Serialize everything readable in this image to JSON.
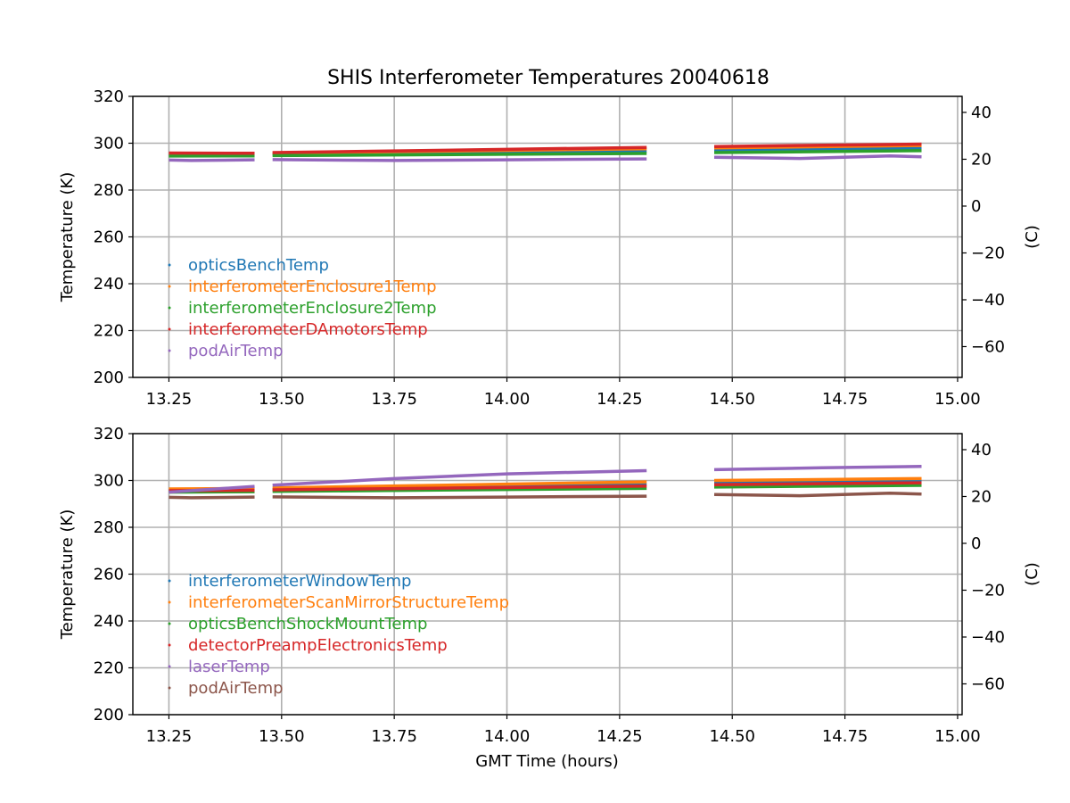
{
  "title": "SHIS Interferometer Temperatures 20040618",
  "chart_data": [
    {
      "type": "line",
      "ylabel": "Temperature (K)",
      "ylabel_right": "(C)",
      "xlabel": "",
      "xlim": [
        13.17,
        15.01
      ],
      "ylim": [
        200,
        320
      ],
      "ylim_right_celsius": [
        -73.15,
        46.85
      ],
      "xticks": [
        "13.25",
        "13.50",
        "13.75",
        "14.00",
        "14.25",
        "14.50",
        "14.75",
        "15.00"
      ],
      "yticks": [
        "200",
        "220",
        "240",
        "260",
        "280",
        "300",
        "320"
      ],
      "yticks_right": [
        "−60",
        "−40",
        "−20",
        "0",
        "20",
        "40"
      ],
      "grid": true,
      "legend_position": "lower-left",
      "series": [
        {
          "name": "opticsBenchTemp",
          "color": "#1f77b4",
          "segments": [
            {
              "x": [
                13.25,
                13.44
              ],
              "y": [
                295.0,
                295.2
              ]
            },
            {
              "x": [
                13.48,
                14.31
              ],
              "y": [
                295.3,
                296.6
              ]
            },
            {
              "x": [
                14.46,
                14.92
              ],
              "y": [
                297.2,
                297.9
              ]
            }
          ]
        },
        {
          "name": "interferometerEnclosure1Temp",
          "color": "#ff7f0e",
          "segments": [
            {
              "x": [
                13.25,
                13.44
              ],
              "y": [
                295.6,
                295.7
              ]
            },
            {
              "x": [
                13.48,
                14.31
              ],
              "y": [
                295.8,
                297.6
              ]
            },
            {
              "x": [
                14.46,
                14.92
              ],
              "y": [
                298.0,
                299.0
              ]
            }
          ]
        },
        {
          "name": "interferometerEnclosure2Temp",
          "color": "#2ca02c",
          "segments": [
            {
              "x": [
                13.25,
                13.44
              ],
              "y": [
                294.5,
                294.6
              ]
            },
            {
              "x": [
                13.48,
                14.31
              ],
              "y": [
                294.7,
                295.6
              ]
            },
            {
              "x": [
                14.46,
                14.92
              ],
              "y": [
                296.0,
                296.8
              ]
            }
          ]
        },
        {
          "name": "interferometerDAmotorsTemp",
          "color": "#d62728",
          "segments": [
            {
              "x": [
                13.25,
                13.44
              ],
              "y": [
                295.8,
                295.7
              ]
            },
            {
              "x": [
                13.48,
                14.31
              ],
              "y": [
                296.0,
                298.2
              ]
            },
            {
              "x": [
                14.46,
                14.92
              ],
              "y": [
                298.6,
                299.6
              ]
            }
          ]
        },
        {
          "name": "podAirTemp",
          "color": "#9467bd",
          "segments": [
            {
              "x": [
                13.25,
                13.3,
                13.44
              ],
              "y": [
                292.8,
                292.6,
                292.9
              ]
            },
            {
              "x": [
                13.48,
                13.75,
                14.0,
                14.31
              ],
              "y": [
                293.0,
                292.6,
                292.9,
                293.3
              ]
            },
            {
              "x": [
                14.46,
                14.65,
                14.85,
                14.92
              ],
              "y": [
                294.0,
                293.5,
                294.6,
                294.2
              ]
            }
          ]
        }
      ]
    },
    {
      "type": "line",
      "ylabel": "Temperature (K)",
      "ylabel_right": "(C)",
      "xlabel": "GMT Time (hours)",
      "xlim": [
        13.17,
        15.01
      ],
      "ylim": [
        200,
        320
      ],
      "ylim_right_celsius": [
        -73.15,
        46.85
      ],
      "xticks": [
        "13.25",
        "13.50",
        "13.75",
        "14.00",
        "14.25",
        "14.50",
        "14.75",
        "15.00"
      ],
      "yticks": [
        "200",
        "220",
        "240",
        "260",
        "280",
        "300",
        "320"
      ],
      "yticks_right": [
        "−60",
        "−40",
        "−20",
        "0",
        "20",
        "40"
      ],
      "grid": true,
      "legend_position": "lower-left",
      "series": [
        {
          "name": "interferometerWindowTemp",
          "color": "#1f77b4",
          "segments": [
            {
              "x": [
                13.25,
                13.44
              ],
              "y": [
                295.5,
                296.0
              ]
            },
            {
              "x": [
                13.48,
                14.31
              ],
              "y": [
                296.2,
                298.3
              ]
            },
            {
              "x": [
                14.46,
                14.92
              ],
              "y": [
                298.8,
                299.6
              ]
            }
          ]
        },
        {
          "name": "interferometerScanMirrorStructureTemp",
          "color": "#ff7f0e",
          "segments": [
            {
              "x": [
                13.25,
                13.44
              ],
              "y": [
                296.4,
                296.6
              ]
            },
            {
              "x": [
                13.48,
                14.31
              ],
              "y": [
                296.8,
                299.4
              ]
            },
            {
              "x": [
                14.46,
                14.92
              ],
              "y": [
                300.0,
                300.8
              ]
            }
          ]
        },
        {
          "name": "opticsBenchShockMountTemp",
          "color": "#2ca02c",
          "segments": [
            {
              "x": [
                13.25,
                13.44
              ],
              "y": [
                295.0,
                295.2
              ]
            },
            {
              "x": [
                13.48,
                14.31
              ],
              "y": [
                295.3,
                296.6
              ]
            },
            {
              "x": [
                14.46,
                14.92
              ],
              "y": [
                297.2,
                297.9
              ]
            }
          ]
        },
        {
          "name": "detectorPreampElectronicsTemp",
          "color": "#d62728",
          "segments": [
            {
              "x": [
                13.25,
                13.44
              ],
              "y": [
                295.6,
                295.8
              ]
            },
            {
              "x": [
                13.48,
                14.31
              ],
              "y": [
                296.0,
                297.6
              ]
            },
            {
              "x": [
                14.46,
                14.92
              ],
              "y": [
                298.2,
                299.0
              ]
            }
          ]
        },
        {
          "name": "laserTemp",
          "color": "#9467bd",
          "segments": [
            {
              "x": [
                13.25,
                13.44
              ],
              "y": [
                295.0,
                297.5
              ]
            },
            {
              "x": [
                13.48,
                13.75,
                14.0,
                14.31
              ],
              "y": [
                298.0,
                300.8,
                302.8,
                304.2
              ]
            },
            {
              "x": [
                14.46,
                14.7,
                14.92
              ],
              "y": [
                304.6,
                305.4,
                306.0
              ]
            }
          ]
        },
        {
          "name": "podAirTemp",
          "color": "#8c564b",
          "segments": [
            {
              "x": [
                13.25,
                13.3,
                13.44
              ],
              "y": [
                292.8,
                292.6,
                292.9
              ]
            },
            {
              "x": [
                13.48,
                13.75,
                14.0,
                14.31
              ],
              "y": [
                293.0,
                292.6,
                292.9,
                293.3
              ]
            },
            {
              "x": [
                14.46,
                14.65,
                14.85,
                14.92
              ],
              "y": [
                294.0,
                293.5,
                294.6,
                294.2
              ]
            }
          ]
        }
      ]
    }
  ]
}
